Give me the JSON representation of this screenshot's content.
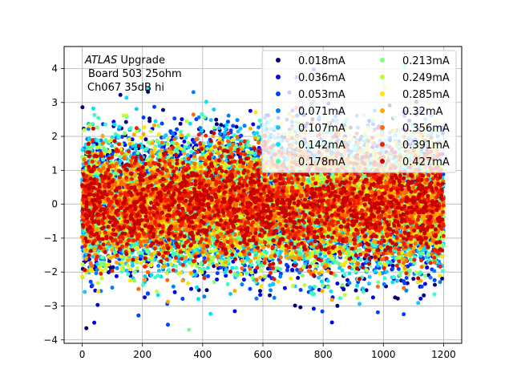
{
  "chart_data": {
    "type": "scatter",
    "title": "",
    "xlabel": "",
    "ylabel": "",
    "xlim": [
      -60,
      1260
    ],
    "ylim": [
      -4.1,
      4.65
    ],
    "xticks": [
      0,
      200,
      400,
      600,
      800,
      1000,
      1200
    ],
    "yticks": [
      -4,
      -3,
      -2,
      -1,
      0,
      1,
      2,
      3,
      4
    ],
    "grid": true,
    "legend_position": "top-right",
    "legend_columns": 2,
    "annotation": {
      "line1_italic": "ATLAS",
      "line1_rest": " Upgrade",
      "line2": "Board 503 25ohm",
      "line3": "Ch067 35dB hi"
    },
    "x_range_of_points": [
      0,
      1200
    ],
    "points_per_series": 1200,
    "series": [
      {
        "name": "0.018mA",
        "color": "#00007f",
        "spread_sd": 1.05
      },
      {
        "name": "0.036mA",
        "color": "#0000e8",
        "spread_sd": 1.05
      },
      {
        "name": "0.053mA",
        "color": "#0040ff",
        "spread_sd": 1.05
      },
      {
        "name": "0.071mA",
        "color": "#0080ff",
        "spread_sd": 1.0
      },
      {
        "name": "0.107mA",
        "color": "#1ac4ff",
        "spread_sd": 1.0
      },
      {
        "name": "0.142mA",
        "color": "#00e4f8",
        "spread_sd": 0.95
      },
      {
        "name": "0.178mA",
        "color": "#3affc0",
        "spread_sd": 0.95
      },
      {
        "name": "0.213mA",
        "color": "#7cff7a",
        "spread_sd": 0.9
      },
      {
        "name": "0.249mA",
        "color": "#c0ff36",
        "spread_sd": 0.9
      },
      {
        "name": "0.285mA",
        "color": "#ffe600",
        "spread_sd": 0.85
      },
      {
        "name": "0.32mA",
        "color": "#ffa700",
        "spread_sd": 0.85
      },
      {
        "name": "0.356mA",
        "color": "#ff6800",
        "spread_sd": 0.8
      },
      {
        "name": "0.391mA",
        "color": "#f11d00",
        "spread_sd": 0.8
      },
      {
        "name": "0.427mA",
        "color": "#c90000",
        "spread_sd": 0.75
      }
    ]
  }
}
